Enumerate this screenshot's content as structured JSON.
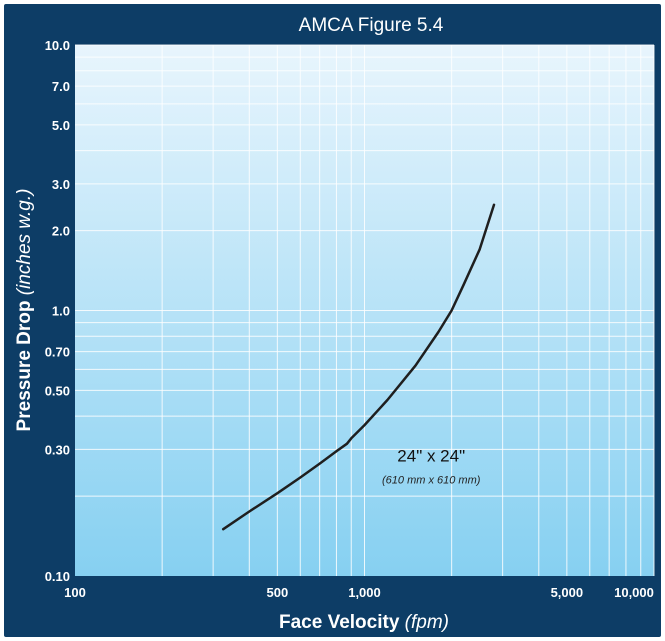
{
  "chart_data": {
    "type": "line",
    "title": "AMCA Figure 5.4",
    "xlabel": "Face Velocity",
    "xlabel_unit": "(fpm)",
    "ylabel": "Pressure Drop",
    "ylabel_unit": "(inches w.g.)",
    "x_scale": "log",
    "y_scale": "log",
    "xlim": [
      100,
      10000
    ],
    "ylim": [
      0.1,
      10
    ],
    "x_ticks": [
      {
        "value": 100,
        "label": "100"
      },
      {
        "value": 500,
        "label": "500"
      },
      {
        "value": 1000,
        "label": "1,000"
      },
      {
        "value": 5000,
        "label": "5,000"
      },
      {
        "value": 10000,
        "label": "10,000"
      }
    ],
    "y_ticks": [
      {
        "value": 0.1,
        "label": "0.10"
      },
      {
        "value": 0.3,
        "label": "0.30"
      },
      {
        "value": 0.5,
        "label": "0.50"
      },
      {
        "value": 0.7,
        "label": "0.70"
      },
      {
        "value": 1.0,
        "label": "1.0"
      },
      {
        "value": 2.0,
        "label": "2.0"
      },
      {
        "value": 3.0,
        "label": "3.0"
      },
      {
        "value": 5.0,
        "label": "5.0"
      },
      {
        "value": 7.0,
        "label": "7.0"
      },
      {
        "value": 10.0,
        "label": "10.0"
      }
    ],
    "x_grid": [
      200,
      300,
      400,
      500,
      600,
      700,
      800,
      900,
      1000,
      2000,
      3000,
      4000,
      5000,
      6000,
      7000,
      8000,
      9000,
      10000
    ],
    "y_grid": [
      0.2,
      0.3,
      0.4,
      0.5,
      0.6,
      0.7,
      0.8,
      0.9,
      1.0,
      2.0,
      3.0,
      4.0,
      5.0,
      6.0,
      7.0,
      8.0,
      9.0,
      10.0
    ],
    "grid": true,
    "colors": {
      "frame": "#0d3d66",
      "plot_top": "#e8f5fd",
      "plot_bottom": "#86d0f1",
      "grid": "#ffffff",
      "line": "#1f1f1f"
    },
    "series": [
      {
        "x": [
          325,
          400,
          500,
          600,
          700,
          800,
          870,
          900,
          1000,
          1200,
          1500,
          1800,
          2000,
          2200,
          2500,
          2800
        ],
        "y": [
          0.15,
          0.175,
          0.205,
          0.235,
          0.265,
          0.295,
          0.315,
          0.33,
          0.37,
          0.46,
          0.62,
          0.83,
          1.0,
          1.25,
          1.7,
          2.5
        ]
      }
    ],
    "annotations": [
      {
        "text": "24\" x 24\"",
        "x": 1700,
        "y": 0.27
      },
      {
        "text": "(610 mm x 610 mm)",
        "x": 1700,
        "y": 0.223
      }
    ]
  }
}
